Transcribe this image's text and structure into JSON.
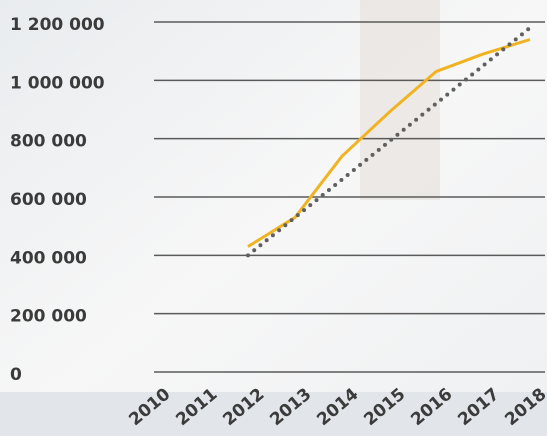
{
  "chart_data": {
    "type": "line",
    "categories": [
      "2010",
      "2011",
      "2012",
      "2013",
      "2014",
      "2015",
      "2016",
      "2017",
      "2018"
    ],
    "series": [
      {
        "color": "#f0b323",
        "style": "solid",
        "values": [
          null,
          null,
          430000,
          530000,
          740000,
          890000,
          1030000,
          1090000,
          1140000
        ]
      },
      {
        "color": "#606060",
        "style": "dotted",
        "values": [
          null,
          null,
          400000,
          530000,
          660000,
          790000,
          920000,
          1050000,
          1180000
        ]
      }
    ],
    "ylim": [
      0,
      1200000
    ],
    "yticks": [
      0,
      {
        "value": 200000,
        "label": "200 000"
      },
      {
        "value": 400000,
        "label": "400 000"
      },
      {
        "value": 600000,
        "label": "600 000"
      },
      {
        "value": 800000,
        "label": "800 000"
      },
      {
        "value": 1000000,
        "label": "1 000 000"
      },
      {
        "value": 1200000,
        "label": "1 200 000"
      }
    ],
    "grid": true
  }
}
